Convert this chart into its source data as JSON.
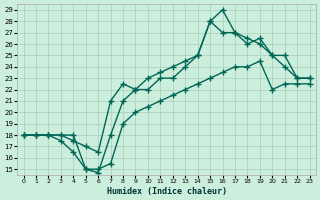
{
  "xlabel": "Humidex (Indice chaleur)",
  "bg_color": "#cceedd",
  "grid_color": "#aaccbb",
  "line_color": "#006655",
  "xlim": [
    -0.5,
    23.5
  ],
  "ylim": [
    14.5,
    29.5
  ],
  "xticks": [
    0,
    1,
    2,
    3,
    4,
    5,
    6,
    7,
    8,
    9,
    10,
    11,
    12,
    13,
    14,
    15,
    16,
    17,
    18,
    19,
    20,
    21,
    22,
    23
  ],
  "yticks": [
    15,
    16,
    17,
    18,
    19,
    20,
    21,
    22,
    23,
    24,
    25,
    26,
    27,
    28,
    29
  ],
  "curve1_x": [
    0,
    1,
    2,
    3,
    4,
    5,
    6,
    7,
    8,
    9,
    10,
    11,
    12,
    13,
    14,
    15,
    16,
    17,
    18,
    19,
    20,
    21,
    22,
    23
  ],
  "curve1_y": [
    18,
    18,
    18,
    18,
    18,
    15,
    14.7,
    18,
    21,
    22,
    22,
    23,
    23,
    24,
    25,
    28,
    29,
    27,
    26.5,
    26,
    25,
    25,
    23,
    23
  ],
  "curve2_x": [
    0,
    1,
    2,
    3,
    4,
    5,
    6,
    7,
    8,
    9,
    10,
    11,
    12,
    13,
    14,
    15,
    16,
    17,
    18,
    19,
    20,
    21,
    22,
    23
  ],
  "curve2_y": [
    18,
    18,
    18,
    18,
    17.5,
    17,
    16.5,
    21,
    22.5,
    22,
    23,
    23.5,
    24,
    24.5,
    25,
    28,
    27,
    27,
    26,
    26.5,
    25,
    24,
    23,
    23
  ],
  "curve3_x": [
    0,
    1,
    2,
    3,
    4,
    5,
    6,
    7,
    8,
    9,
    10,
    11,
    12,
    13,
    14,
    15,
    16,
    17,
    18,
    19,
    20,
    21,
    22,
    23
  ],
  "curve3_y": [
    18,
    18,
    18,
    17.5,
    16.5,
    15,
    15,
    15.5,
    19,
    20,
    20.5,
    21,
    21.5,
    22,
    22.5,
    23,
    23.5,
    24,
    24,
    24.5,
    22,
    22.5,
    22.5,
    22.5
  ]
}
